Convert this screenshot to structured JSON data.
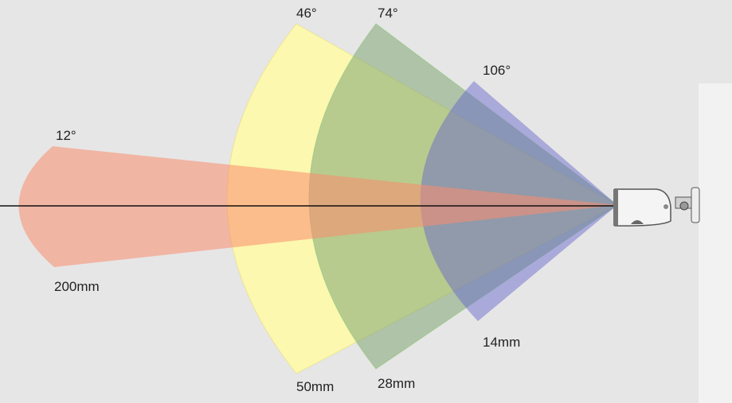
{
  "lenses": [
    {
      "angle": "12°",
      "focal_length": "200mm"
    },
    {
      "angle": "46°",
      "focal_length": "50mm"
    },
    {
      "angle": "74°",
      "focal_length": "28mm"
    },
    {
      "angle": "106°",
      "focal_length": "14mm"
    }
  ]
}
